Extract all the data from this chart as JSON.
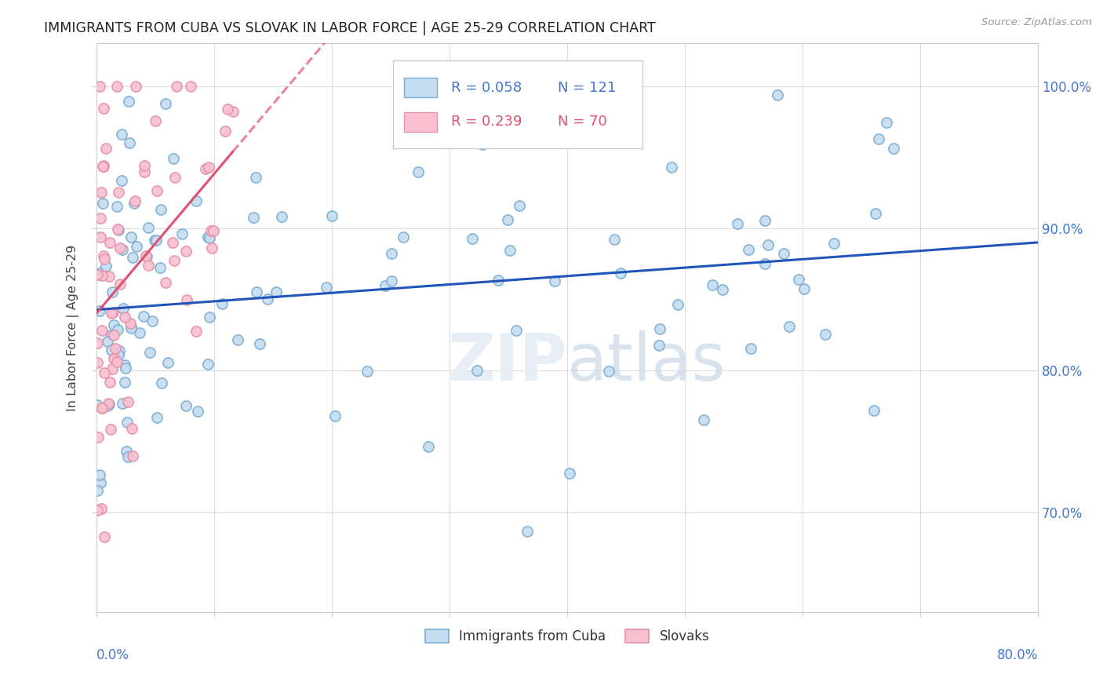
{
  "title": "IMMIGRANTS FROM CUBA VS SLOVAK IN LABOR FORCE | AGE 25-29 CORRELATION CHART",
  "source": "Source: ZipAtlas.com",
  "legend_cuba": "Immigrants from Cuba",
  "legend_slovak": "Slovaks",
  "r_cuba": 0.058,
  "n_cuba": 121,
  "r_slovak": 0.239,
  "n_slovak": 70,
  "color_cuba_edge": "#7aadd4",
  "color_cuba_face": "#c5ddf0",
  "color_slovak_edge": "#e890a8",
  "color_slovak_face": "#f8c0d0",
  "trendline_cuba": "#2255bb",
  "trendline_slovak": "#e05070",
  "background": "#ffffff",
  "grid_color": "#dddddd",
  "title_color": "#222222",
  "axis_label_color": "#4477cc",
  "watermark_color": "#e8eef5",
  "xlim": [
    0,
    80
  ],
  "ylim": [
    63,
    103
  ],
  "yticks": [
    70,
    80,
    90,
    100
  ],
  "ytick_labels": [
    "70.0%",
    "80.0%",
    "90.0%",
    "100.0%"
  ]
}
